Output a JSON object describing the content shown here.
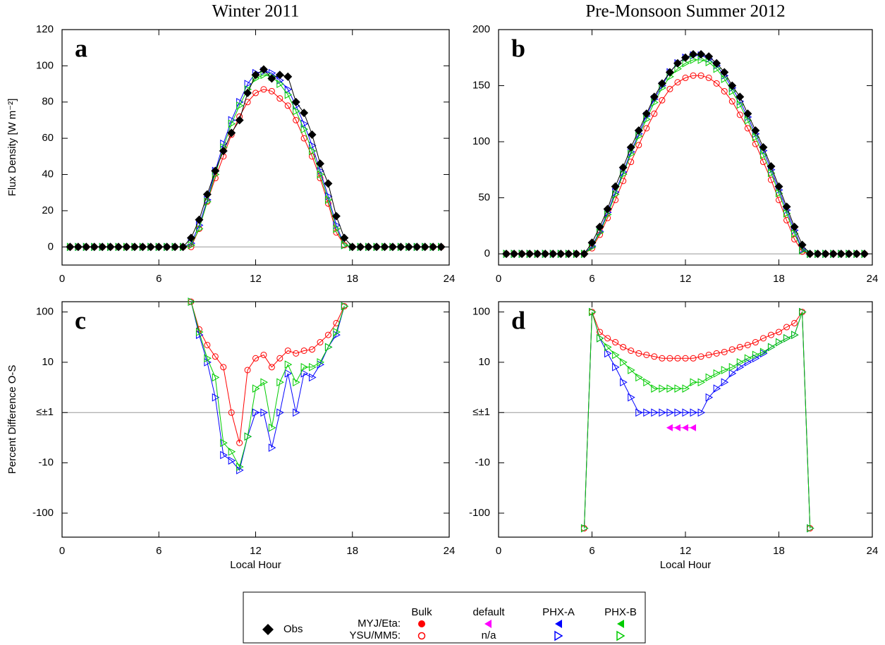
{
  "chart_data": [
    {
      "type": "line",
      "title": "Winter 2011",
      "panel_label": "a",
      "ylabel": "Flux Density [W m⁻²]",
      "x": [
        0.5,
        1,
        1.5,
        2,
        2.5,
        3,
        3.5,
        4,
        4.5,
        5,
        5.5,
        6,
        6.5,
        7,
        7.5,
        8,
        8.5,
        9,
        9.5,
        10,
        10.5,
        11,
        11.5,
        12,
        12.5,
        13,
        13.5,
        14,
        14.5,
        15,
        15.5,
        16,
        16.5,
        17,
        17.5,
        18,
        18.5,
        19,
        19.5,
        20,
        20.5,
        21,
        21.5,
        22,
        22.5,
        23,
        23.5
      ],
      "xlim": [
        0,
        24
      ],
      "xticks": [
        0,
        6,
        12,
        18,
        24
      ],
      "ylim": [
        -10,
        120
      ],
      "yticks": [
        0,
        20,
        40,
        60,
        80,
        100,
        120
      ],
      "hline": 0,
      "series": [
        {
          "color": "#ff0000",
          "marker": "circle-open",
          "values": [
            0,
            0,
            0,
            0,
            0,
            0,
            0,
            0,
            0,
            0,
            0,
            0,
            0,
            0,
            0,
            0,
            10,
            25,
            38,
            50,
            62,
            72,
            80,
            85,
            87,
            86,
            82,
            78,
            70,
            60,
            50,
            38,
            24,
            8,
            1,
            0,
            0,
            0,
            0,
            0,
            0,
            0,
            0,
            0,
            0,
            0,
            0
          ]
        },
        {
          "color": "#0000ff",
          "marker": "tri-right-open",
          "values": [
            0,
            0,
            0,
            0,
            0,
            0,
            0,
            0,
            0,
            0,
            0,
            0,
            0,
            0,
            0,
            2,
            12,
            26,
            42,
            57,
            70,
            80,
            90,
            96,
            97,
            96,
            92,
            87,
            78,
            68,
            56,
            42,
            28,
            12,
            1,
            0,
            0,
            0,
            0,
            0,
            0,
            0,
            0,
            0,
            0,
            0,
            0
          ]
        },
        {
          "color": "#00cc00",
          "marker": "tri-right-open",
          "values": [
            0,
            0,
            0,
            0,
            0,
            0,
            0,
            0,
            0,
            0,
            0,
            0,
            0,
            0,
            0,
            1,
            10,
            25,
            40,
            55,
            68,
            78,
            87,
            93,
            95,
            94,
            90,
            84,
            75,
            65,
            53,
            40,
            26,
            10,
            1,
            0,
            0,
            0,
            0,
            0,
            0,
            0,
            0,
            0,
            0,
            0,
            0
          ]
        },
        {
          "color": "#000000",
          "marker": "diamond",
          "values": [
            0,
            0,
            0,
            0,
            0,
            0,
            0,
            0,
            0,
            0,
            0,
            0,
            0,
            0,
            0,
            5,
            15,
            29,
            42,
            53,
            63,
            70,
            85,
            95,
            98,
            93,
            95,
            94,
            80,
            74,
            62,
            46,
            35,
            17,
            5,
            0,
            0,
            0,
            0,
            0,
            0,
            0,
            0,
            0,
            0,
            0,
            0
          ]
        }
      ]
    },
    {
      "type": "line",
      "title": "Pre-Monsoon Summer 2012",
      "panel_label": "b",
      "x": [
        0.5,
        1,
        1.5,
        2,
        2.5,
        3,
        3.5,
        4,
        4.5,
        5,
        5.5,
        6,
        6.5,
        7,
        7.5,
        8,
        8.5,
        9,
        9.5,
        10,
        10.5,
        11,
        11.5,
        12,
        12.5,
        13,
        13.5,
        14,
        14.5,
        15,
        15.5,
        16,
        16.5,
        17,
        17.5,
        18,
        18.5,
        19,
        19.5,
        20,
        20.5,
        21,
        21.5,
        22,
        22.5,
        23,
        23.5
      ],
      "xlim": [
        0,
        24
      ],
      "xticks": [
        0,
        6,
        12,
        18,
        24
      ],
      "ylim": [
        -10,
        200
      ],
      "yticks": [
        0,
        50,
        100,
        150,
        200
      ],
      "hline": 0,
      "series": [
        {
          "color": "#ff0000",
          "marker": "circle-open",
          "values": [
            0,
            0,
            0,
            0,
            0,
            0,
            0,
            0,
            0,
            0,
            0,
            5,
            17,
            32,
            48,
            65,
            82,
            97,
            112,
            125,
            137,
            147,
            153,
            157,
            159,
            159,
            157,
            152,
            145,
            136,
            124,
            112,
            98,
            82,
            66,
            48,
            30,
            13,
            2,
            0,
            0,
            0,
            0,
            0,
            0,
            0,
            0
          ]
        },
        {
          "color": "#0000ff",
          "marker": "tri-right-open",
          "values": [
            0,
            0,
            0,
            0,
            0,
            0,
            0,
            0,
            0,
            0,
            0,
            7,
            20,
            37,
            55,
            73,
            91,
            107,
            123,
            138,
            150,
            162,
            170,
            175,
            177,
            177,
            174,
            168,
            159,
            148,
            136,
            122,
            107,
            92,
            75,
            57,
            39,
            21,
            4,
            0,
            0,
            0,
            0,
            0,
            0,
            0,
            0
          ]
        },
        {
          "color": "#00cc00",
          "marker": "tri-right-open",
          "values": [
            0,
            0,
            0,
            0,
            0,
            0,
            0,
            0,
            0,
            0,
            0,
            6,
            19,
            35,
            53,
            71,
            89,
            105,
            120,
            135,
            148,
            158,
            165,
            170,
            173,
            173,
            171,
            165,
            156,
            145,
            133,
            119,
            104,
            88,
            72,
            54,
            36,
            18,
            3,
            0,
            0,
            0,
            0,
            0,
            0,
            0,
            0
          ]
        },
        {
          "color": "#000000",
          "marker": "diamond",
          "values": [
            0,
            0,
            0,
            0,
            0,
            0,
            0,
            0,
            0,
            0,
            0,
            10,
            24,
            40,
            60,
            77,
            95,
            110,
            125,
            140,
            152,
            162,
            170,
            175,
            178,
            178,
            176,
            170,
            162,
            150,
            140,
            125,
            110,
            95,
            78,
            60,
            42,
            24,
            8,
            0,
            0,
            0,
            0,
            0,
            0,
            0,
            0
          ]
        }
      ]
    },
    {
      "type": "line",
      "panel_label": "c",
      "ylabel": "Percent Difference O-S",
      "xlabel": "Local Hour",
      "yscale": "symlog",
      "x": [
        8,
        8.5,
        9,
        9.5,
        10,
        10.5,
        11,
        11.5,
        12,
        12.5,
        13,
        13.5,
        14,
        14.5,
        15,
        15.5,
        16,
        16.5,
        17,
        17.5
      ],
      "xlim": [
        0,
        24
      ],
      "xticks": [
        0,
        6,
        12,
        18,
        24
      ],
      "ylim": [
        -300,
        160
      ],
      "yticks": [
        100,
        10,
        {
          "value": 1,
          "label": "≤±1"
        },
        -10,
        -100
      ],
      "hline": 1,
      "series": [
        {
          "color": "#ff0000",
          "marker": "circle-open",
          "values": [
            160,
            45,
            22,
            13,
            8,
            1,
            -4,
            7,
            12,
            14,
            8,
            12,
            17,
            15,
            17,
            18,
            25,
            35,
            60,
            130
          ]
        },
        {
          "color": "#0000ff",
          "marker": "tri-right-open",
          "values": [
            160,
            35,
            10,
            2,
            -7,
            -9,
            -14,
            -3,
            1,
            1,
            -5,
            1,
            6,
            1,
            6,
            5,
            9,
            20,
            35,
            130
          ]
        },
        {
          "color": "#00cc00",
          "marker": "tri-right-open",
          "values": [
            160,
            40,
            12,
            5,
            -4,
            -6,
            -12,
            -3,
            3,
            4,
            -2,
            4,
            9,
            4,
            8,
            8,
            10,
            20,
            40,
            130
          ]
        }
      ]
    },
    {
      "type": "line",
      "panel_label": "d",
      "xlabel": "Local Hour",
      "yscale": "symlog",
      "x": [
        5.5,
        6,
        6.5,
        7,
        7.5,
        8,
        8.5,
        9,
        9.5,
        10,
        10.5,
        11,
        11.5,
        12,
        12.5,
        13,
        13.5,
        14,
        14.5,
        15,
        15.5,
        16,
        16.5,
        17,
        17.5,
        18,
        18.5,
        19,
        19.5,
        20
      ],
      "xlim": [
        0,
        24
      ],
      "xticks": [
        0,
        6,
        12,
        18,
        24
      ],
      "ylim": [
        -300,
        160
      ],
      "yticks": [
        100,
        10,
        {
          "value": 1,
          "label": "≤±1"
        },
        -10,
        -100
      ],
      "hline": 1,
      "series": [
        {
          "color": "#ff0000",
          "marker": "circle-open",
          "values": [
            -200,
            100,
            40,
            30,
            25,
            20,
            17,
            15,
            14,
            13,
            12,
            12,
            12,
            12,
            12,
            13,
            14,
            15,
            16,
            18,
            20,
            22,
            25,
            30,
            35,
            40,
            50,
            60,
            100,
            -200
          ]
        },
        {
          "color": "#0000ff",
          "marker": "tri-right-open",
          "values": [
            -200,
            100,
            30,
            15,
            8,
            4,
            2,
            1,
            1,
            1,
            1,
            1,
            1,
            1,
            1,
            1,
            2,
            3,
            4,
            6,
            8,
            10,
            12,
            15,
            20,
            25,
            30,
            35,
            100,
            -200
          ]
        },
        {
          "color": "#ff00ff",
          "marker": "tri-left",
          "values": [
            null,
            null,
            null,
            null,
            null,
            null,
            null,
            null,
            null,
            null,
            null,
            -2,
            -2,
            -2,
            -2,
            null,
            null,
            null,
            null,
            null,
            null,
            null,
            null,
            null,
            null,
            null,
            null,
            null,
            null,
            null
          ]
        },
        {
          "color": "#00cc00",
          "marker": "tri-right-open",
          "values": [
            -200,
            100,
            30,
            20,
            14,
            10,
            7,
            5,
            4,
            3,
            3,
            3,
            3,
            3,
            4,
            4,
            5,
            6,
            7,
            8,
            10,
            12,
            14,
            16,
            20,
            25,
            30,
            35,
            100,
            -200
          ]
        }
      ]
    }
  ],
  "legend": {
    "obs": "Obs",
    "columns": [
      "Bulk",
      "default",
      "PHX-A",
      "PHX-B"
    ],
    "rows": [
      "MYJ/Eta:",
      "YSU/MM5:"
    ],
    "na": "n/a"
  }
}
